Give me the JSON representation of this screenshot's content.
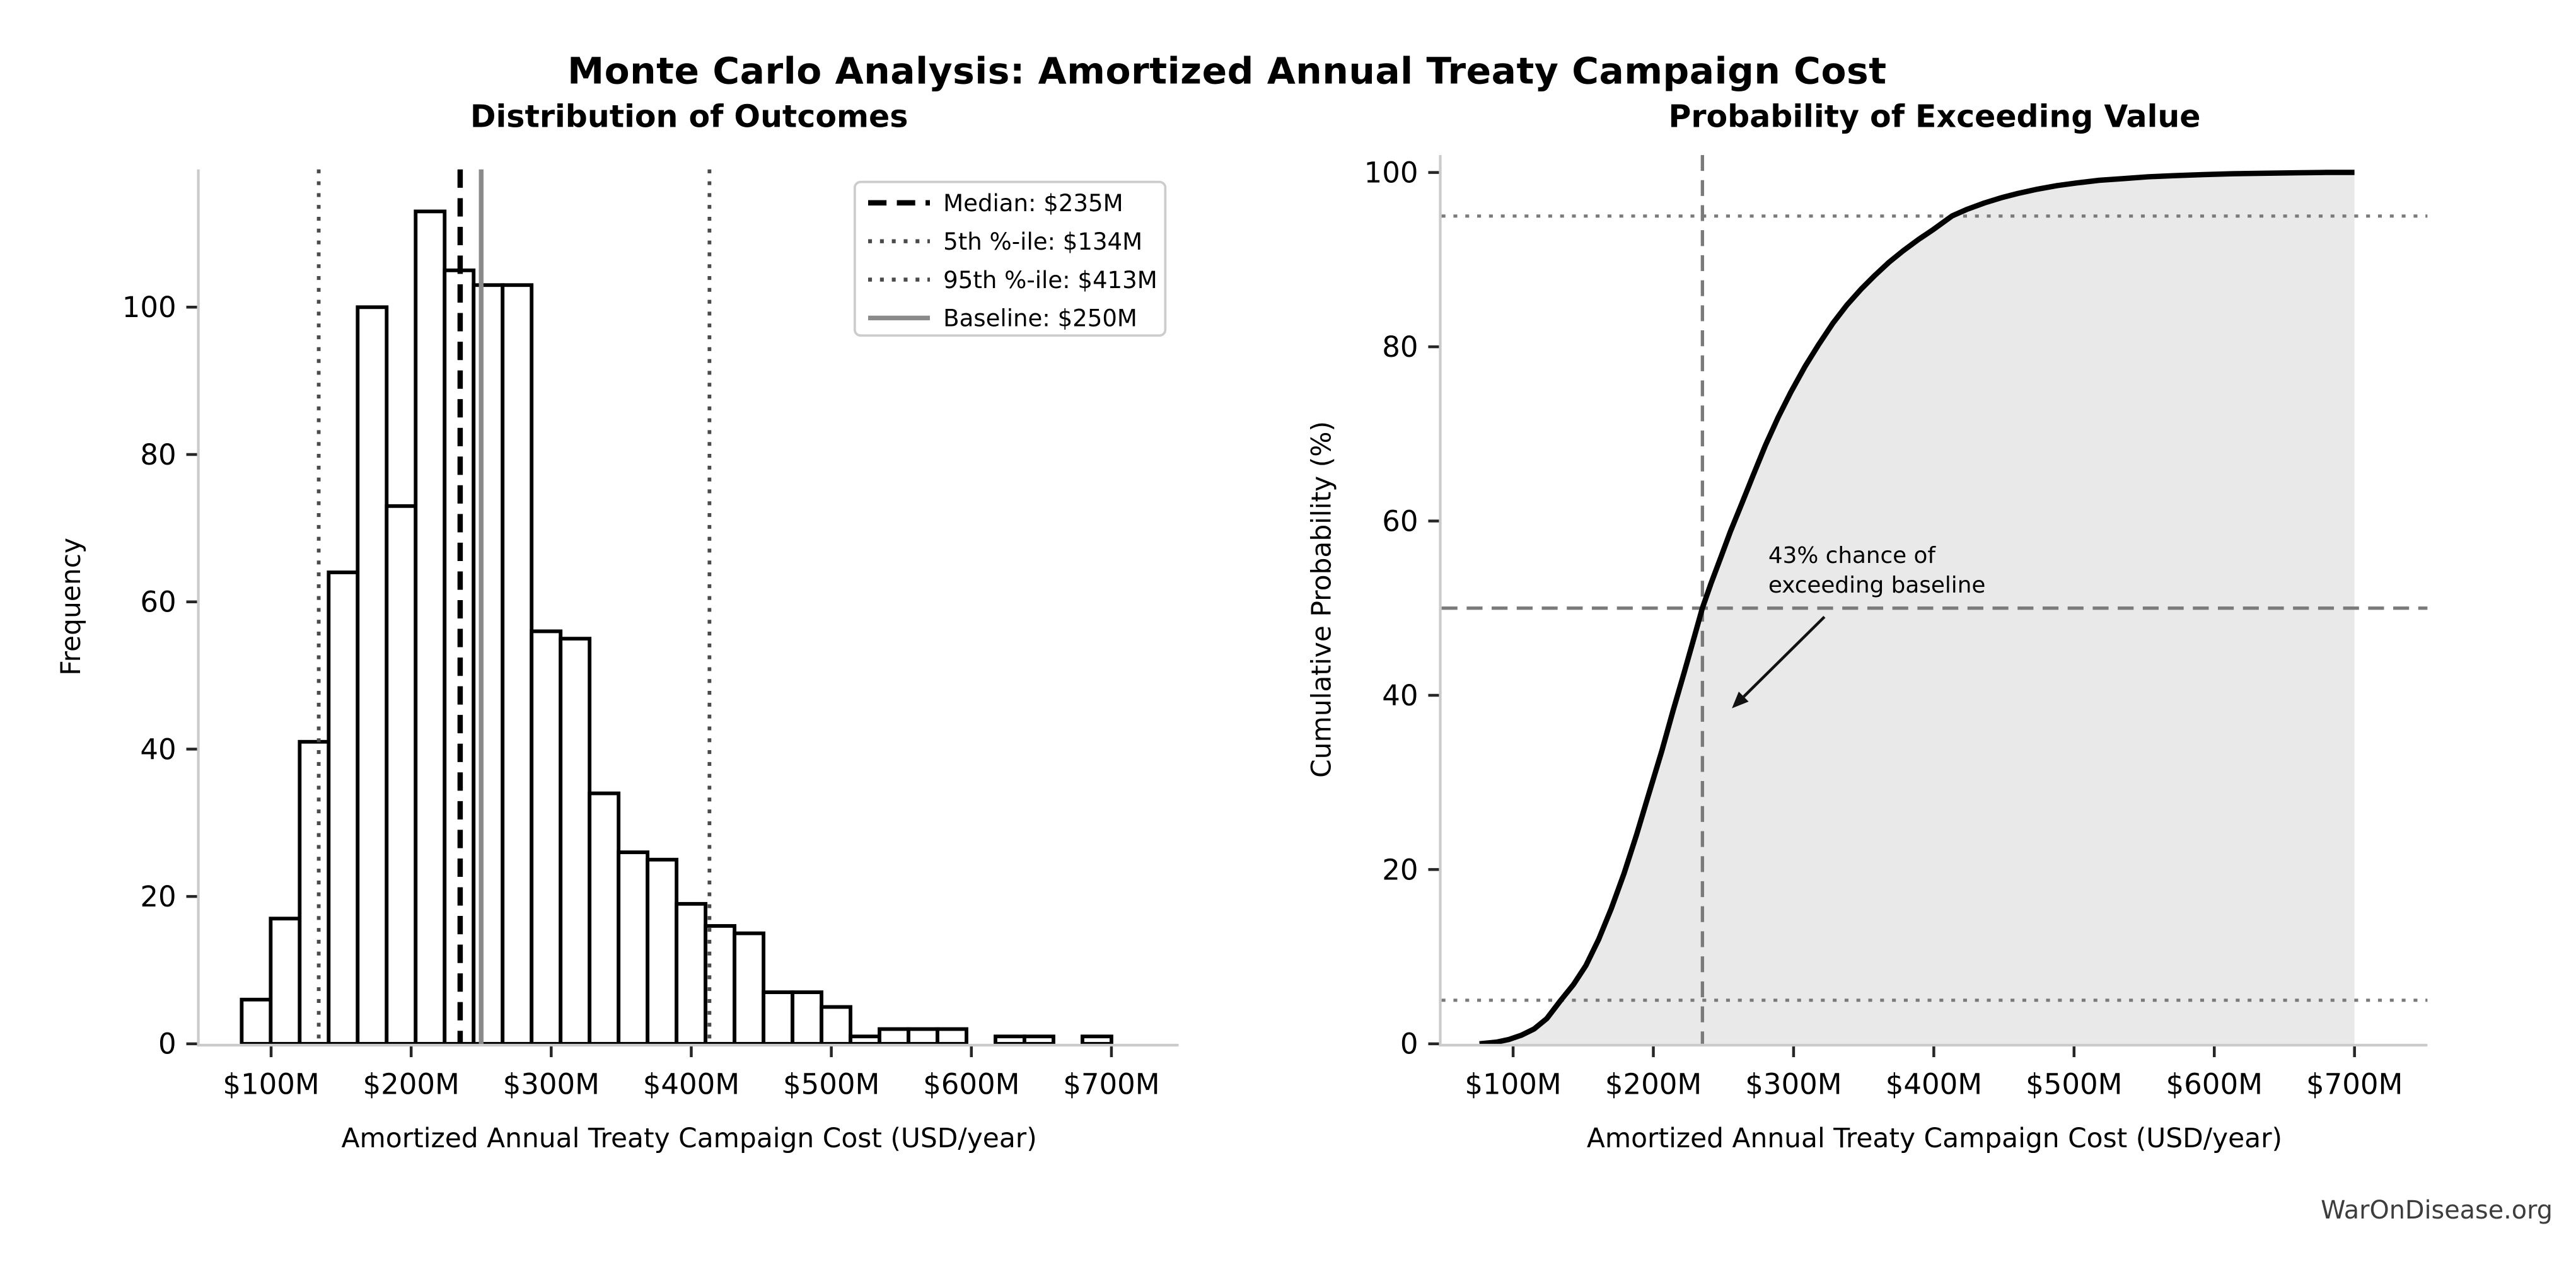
{
  "page": {
    "main_title": "Monte Carlo Analysis: Amortized Annual Treaty Campaign Cost",
    "watermark": "WarOnDisease.org",
    "background": "#ffffff",
    "spine_color": "#cbcbcb",
    "tick_color": "#262626"
  },
  "chart_data": [
    {
      "type": "bar",
      "panel": "histogram",
      "title": "Distribution of Outcomes",
      "xlabel": "Amortized Annual Treaty Campaign Cost (USD/year)",
      "ylabel": "Frequency",
      "xlim": [
        49,
        748
      ],
      "ylim": [
        0,
        118.7
      ],
      "xtick_values": [
        100,
        200,
        300,
        400,
        500,
        600,
        700
      ],
      "xtick_labels": [
        "$100M",
        "$200M",
        "$300M",
        "$400M",
        "$500M",
        "$600M",
        "$700M"
      ],
      "ytick_values": [
        0,
        20,
        40,
        60,
        80,
        100
      ],
      "bin_start_musd": 79,
      "bin_width_musd": 20.7,
      "counts": [
        6,
        17,
        41,
        64,
        100,
        73,
        113,
        105,
        103,
        103,
        56,
        55,
        34,
        26,
        25,
        19,
        16,
        15,
        7,
        7,
        5,
        1,
        2,
        2,
        2,
        0,
        1,
        1,
        0,
        1
      ],
      "bar_fill": "#ffffff",
      "bar_edge": "#000000",
      "ref_lines": [
        {
          "name": "median-line",
          "x": 235,
          "style": "dashed",
          "color": "#000000",
          "width": 3.2,
          "label": "Median: $235M"
        },
        {
          "name": "p5-line",
          "x": 134,
          "style": "dotted",
          "color": "#4a4a4a",
          "width": 2.2,
          "label": "5th %-ile: $134M"
        },
        {
          "name": "p95-line",
          "x": 413,
          "style": "dotted",
          "color": "#4a4a4a",
          "width": 2.2,
          "label": "95th %-ile: $413M"
        },
        {
          "name": "baseline-line",
          "x": 250,
          "style": "solid",
          "color": "#8a8a8a",
          "width": 2.8,
          "label": "Baseline: $250M"
        }
      ],
      "legend_position": "upper right"
    },
    {
      "type": "area",
      "panel": "cdf",
      "title": "Probability of Exceeding Value",
      "xlabel": "Amortized Annual Treaty Campaign Cost (USD/year)",
      "ylabel": "Cumulative Probability (%)",
      "xlim": [
        49,
        752
      ],
      "ylim": [
        0,
        102
      ],
      "xtick_values": [
        100,
        200,
        300,
        400,
        500,
        600,
        700
      ],
      "xtick_labels": [
        "$100M",
        "$200M",
        "$300M",
        "$400M",
        "$500M",
        "$600M",
        "$700M"
      ],
      "ytick_values": [
        0,
        20,
        40,
        60,
        80,
        100
      ],
      "curve_color": "#000000",
      "curve_width": 3.2,
      "fill_color": "#e9e9e9",
      "points": [
        [
          76,
          0
        ],
        [
          88,
          0.2
        ],
        [
          97,
          0.5
        ],
        [
          106,
          1.0
        ],
        [
          115,
          1.7
        ],
        [
          124,
          2.9
        ],
        [
          134,
          5
        ],
        [
          143,
          6.8
        ],
        [
          152,
          9
        ],
        [
          161,
          12
        ],
        [
          170,
          15.5
        ],
        [
          179,
          19.5
        ],
        [
          188,
          24
        ],
        [
          197,
          28.8
        ],
        [
          206,
          33.6
        ],
        [
          214,
          38.2
        ],
        [
          222,
          42.6
        ],
        [
          229,
          46.6
        ],
        [
          235,
          50
        ],
        [
          241,
          52.8
        ],
        [
          248,
          55.8
        ],
        [
          255,
          58.8
        ],
        [
          263,
          62
        ],
        [
          271,
          65.2
        ],
        [
          280,
          68.7
        ],
        [
          289,
          71.9
        ],
        [
          298,
          74.8
        ],
        [
          308,
          77.7
        ],
        [
          318,
          80.3
        ],
        [
          328,
          82.7
        ],
        [
          338,
          84.8
        ],
        [
          348,
          86.6
        ],
        [
          358,
          88.2
        ],
        [
          368,
          89.7
        ],
        [
          378,
          91
        ],
        [
          389,
          92.3
        ],
        [
          400,
          93.5
        ],
        [
          413,
          95
        ],
        [
          424,
          95.8
        ],
        [
          436,
          96.5
        ],
        [
          448,
          97.1
        ],
        [
          460,
          97.6
        ],
        [
          474,
          98.1
        ],
        [
          488,
          98.5
        ],
        [
          502,
          98.8
        ],
        [
          518,
          99.1
        ],
        [
          535,
          99.3
        ],
        [
          553,
          99.5
        ],
        [
          572,
          99.65
        ],
        [
          592,
          99.75
        ],
        [
          613,
          99.85
        ],
        [
          635,
          99.92
        ],
        [
          658,
          99.97
        ],
        [
          680,
          100
        ],
        [
          700,
          100
        ]
      ],
      "h_lines": [
        {
          "name": "p5-level",
          "y": 5,
          "style": "dotted",
          "color": "#7a7a7a",
          "width": 1.9
        },
        {
          "name": "p50-level",
          "y": 50,
          "style": "dashed",
          "color": "#7a7a7a",
          "width": 2.0
        },
        {
          "name": "p95-level",
          "y": 95,
          "style": "dotted",
          "color": "#7a7a7a",
          "width": 1.9
        }
      ],
      "v_lines": [
        {
          "name": "median-vline",
          "x": 235,
          "style": "dashed",
          "color": "#7a7a7a",
          "width": 2.0
        }
      ],
      "annotation": {
        "lines": [
          "43% chance of",
          "exceeding baseline"
        ],
        "text_x_musd": 282,
        "text_y_pct": 55.2,
        "line_gap_pct": 3.4,
        "arrow_from": [
          322,
          49.0
        ],
        "arrow_to": [
          256,
          38.5
        ],
        "color": "#111111"
      }
    }
  ]
}
